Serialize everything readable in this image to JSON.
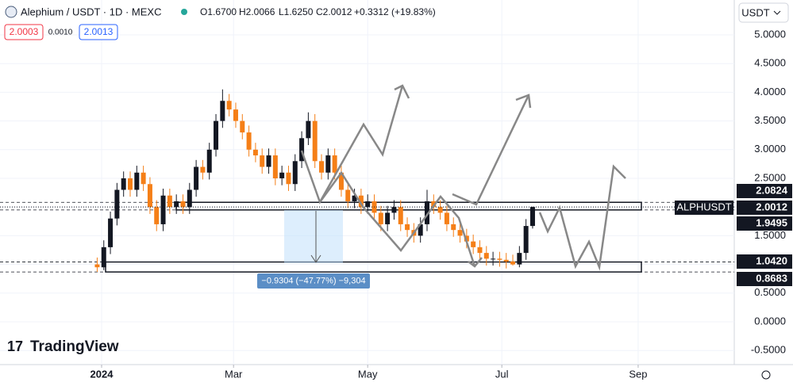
{
  "header": {
    "symbol": "Alephium / USDT · 1D · MEXC",
    "open": "O1.6700",
    "high": "H2.0066",
    "low": "L1.6250",
    "close": "C2.0012",
    "change": "+0.3312 (+19.83%)",
    "bid": "2.0003",
    "spread": "0.0010",
    "ask": "2.0013",
    "currency": "USDT",
    "logo": "TradingView"
  },
  "chart_data": {
    "type": "candlestick",
    "x": [
      -2,
      1,
      4,
      7,
      10,
      13,
      16,
      19,
      22,
      25,
      28,
      31,
      34,
      37,
      40,
      43,
      46,
      49,
      52,
      55,
      58,
      61,
      64,
      67,
      70,
      73,
      76,
      79,
      82,
      85,
      88,
      91,
      94,
      97,
      100,
      103,
      106,
      109,
      112,
      115,
      118,
      121,
      124,
      127,
      130,
      133,
      136,
      139,
      142,
      145,
      148,
      151,
      154,
      157,
      160,
      163,
      166,
      169,
      172,
      175,
      178,
      181,
      184,
      187,
      190,
      193,
      196
    ],
    "open": [
      1.0,
      0.95,
      1.3,
      1.8,
      2.3,
      2.5,
      2.3,
      2.6,
      2.4,
      2.0,
      1.7,
      2.2,
      2.0,
      2.1,
      2.0,
      2.3,
      2.7,
      2.6,
      3.0,
      3.5,
      3.85,
      3.7,
      3.5,
      3.3,
      3.0,
      2.9,
      2.7,
      2.9,
      2.5,
      2.6,
      2.4,
      2.8,
      3.2,
      3.5,
      2.8,
      2.6,
      2.9,
      2.6,
      2.3,
      2.1,
      2.2,
      2.0,
      2.1,
      1.9,
      1.7,
      1.9,
      2.0,
      1.7,
      1.6,
      1.5,
      1.7,
      2.1,
      2.0,
      1.9,
      1.7,
      1.6,
      1.5,
      1.4,
      1.3,
      1.2,
      1.1,
      1.1,
      1.08,
      1.05,
      1.0,
      1.2,
      1.67
    ],
    "high": [
      1.12,
      1.42,
      1.92,
      2.42,
      2.62,
      2.62,
      2.72,
      2.72,
      2.52,
      2.12,
      2.32,
      2.32,
      2.22,
      2.22,
      2.42,
      2.82,
      2.82,
      3.12,
      3.62,
      4.05,
      3.97,
      3.82,
      3.62,
      3.42,
      3.12,
      3.02,
      3.02,
      3.02,
      2.72,
      2.72,
      2.92,
      3.32,
      3.65,
      3.62,
      2.92,
      3.02,
      3.02,
      2.72,
      2.42,
      2.32,
      2.32,
      2.22,
      2.22,
      2.02,
      2.02,
      2.12,
      2.12,
      1.82,
      1.72,
      1.82,
      2.3,
      2.22,
      2.12,
      2.02,
      1.82,
      1.72,
      1.62,
      1.52,
      1.42,
      1.32,
      1.22,
      1.22,
      1.2,
      1.17,
      1.32,
      1.79,
      2.0066
    ],
    "low": [
      0.87,
      0.9,
      1.18,
      1.68,
      2.18,
      2.18,
      2.18,
      2.28,
      1.88,
      1.58,
      1.58,
      1.88,
      1.88,
      1.88,
      1.88,
      2.18,
      2.48,
      2.48,
      2.88,
      3.38,
      3.58,
      3.38,
      3.18,
      2.88,
      2.78,
      2.58,
      2.58,
      2.38,
      2.38,
      2.28,
      2.28,
      2.68,
      3.08,
      2.68,
      2.48,
      2.48,
      2.48,
      2.18,
      1.98,
      1.98,
      1.88,
      1.88,
      1.78,
      1.58,
      1.58,
      1.78,
      1.58,
      1.48,
      1.38,
      1.38,
      1.58,
      1.88,
      1.78,
      1.58,
      1.48,
      1.38,
      1.28,
      1.18,
      1.08,
      0.98,
      0.98,
      0.96,
      0.93,
      0.98,
      0.95,
      1.08,
      1.625
    ],
    "close": [
      0.95,
      1.3,
      1.8,
      2.3,
      2.5,
      2.3,
      2.6,
      2.4,
      2.0,
      1.7,
      2.2,
      2.0,
      2.1,
      2.0,
      2.3,
      2.7,
      2.6,
      3.0,
      3.5,
      3.85,
      3.7,
      3.5,
      3.3,
      3.0,
      2.9,
      2.7,
      2.9,
      2.5,
      2.6,
      2.4,
      2.8,
      3.2,
      3.5,
      2.8,
      2.6,
      2.9,
      2.6,
      2.3,
      2.1,
      2.2,
      2.0,
      2.1,
      1.9,
      1.7,
      1.9,
      2.0,
      1.7,
      1.6,
      1.5,
      1.7,
      2.1,
      2.0,
      1.9,
      1.7,
      1.6,
      1.5,
      1.4,
      1.3,
      1.2,
      1.1,
      1.1,
      1.08,
      1.05,
      1.0,
      1.2,
      1.67,
      2.0012
    ],
    "up_color": "#131722",
    "down_color": "#f57f17",
    "xlim": [
      -46.2,
      287.7
    ],
    "xticks": [
      {
        "value": 0,
        "label": "2024"
      },
      {
        "value": 60,
        "label": "Mar"
      },
      {
        "value": 121,
        "label": "May"
      },
      {
        "value": 182,
        "label": "Jul"
      },
      {
        "value": 244,
        "label": "Sep"
      }
    ],
    "ylim": [
      -0.746,
      5.608
    ],
    "yticks": [
      {
        "value": 5,
        "label": "5.0000"
      },
      {
        "value": 4.5,
        "label": "4.5000"
      },
      {
        "value": 4,
        "label": "4.0000"
      },
      {
        "value": 3.5,
        "label": "3.5000"
      },
      {
        "value": 3,
        "label": "3.0000"
      },
      {
        "value": 2.5,
        "label": "2.5000"
      },
      {
        "value": 2,
        "label": "2.0000"
      },
      {
        "value": 1.5,
        "label": "1.5000"
      },
      {
        "value": 1,
        "label": "1.0000"
      },
      {
        "value": 0.5,
        "label": "0.5000"
      },
      {
        "value": 0,
        "label": "0.0000"
      },
      {
        "value": -0.5,
        "label": "-0.5000"
      }
    ],
    "grid": true,
    "levels": [
      2.0824,
      1.9495,
      {
        "value": 1.042,
        "label": "1.0420"
      },
      0.8683
    ],
    "last_price": 2.0012,
    "last_price_name": "ALPHUSDT",
    "measure": "−0.9304 (−47.77%) −9,304"
  }
}
